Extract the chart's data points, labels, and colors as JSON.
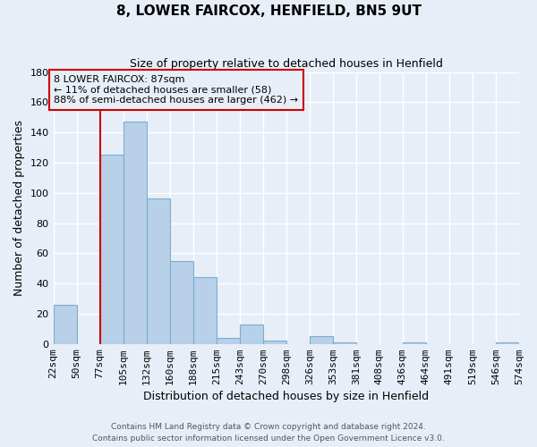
{
  "title": "8, LOWER FAIRCOX, HENFIELD, BN5 9UT",
  "subtitle": "Size of property relative to detached houses in Henfield",
  "xlabel": "Distribution of detached houses by size in Henfield",
  "ylabel": "Number of detached properties",
  "bar_labels": [
    "22sqm",
    "50sqm",
    "77sqm",
    "105sqm",
    "132sqm",
    "160sqm",
    "188sqm",
    "215sqm",
    "243sqm",
    "270sqm",
    "298sqm",
    "326sqm",
    "353sqm",
    "381sqm",
    "408sqm",
    "436sqm",
    "464sqm",
    "491sqm",
    "519sqm",
    "546sqm",
    "574sqm"
  ],
  "bar_heights": [
    26,
    0,
    125,
    147,
    96,
    55,
    44,
    4,
    13,
    2,
    0,
    5,
    1,
    0,
    0,
    1,
    0,
    0,
    0,
    1,
    1
  ],
  "bar_color": "#b8d0e8",
  "bar_edge_color": "#7aadd0",
  "vline_x_index": 2,
  "vline_color": "#cc0000",
  "annotation_text": "8 LOWER FAIRCOX: 87sqm\n← 11% of detached houses are smaller (58)\n88% of semi-detached houses are larger (462) →",
  "annotation_box_edge": "#cc0000",
  "ylim": [
    0,
    180
  ],
  "yticks": [
    0,
    20,
    40,
    60,
    80,
    100,
    120,
    140,
    160,
    180
  ],
  "footer1": "Contains HM Land Registry data © Crown copyright and database right 2024.",
  "footer2": "Contains public sector information licensed under the Open Government Licence v3.0.",
  "background_color": "#e8eef8",
  "grid_color": "#ffffff",
  "title_fontsize": 11,
  "subtitle_fontsize": 9,
  "axis_label_fontsize": 9,
  "tick_fontsize": 8,
  "annot_fontsize": 8,
  "footer_fontsize": 6.5
}
